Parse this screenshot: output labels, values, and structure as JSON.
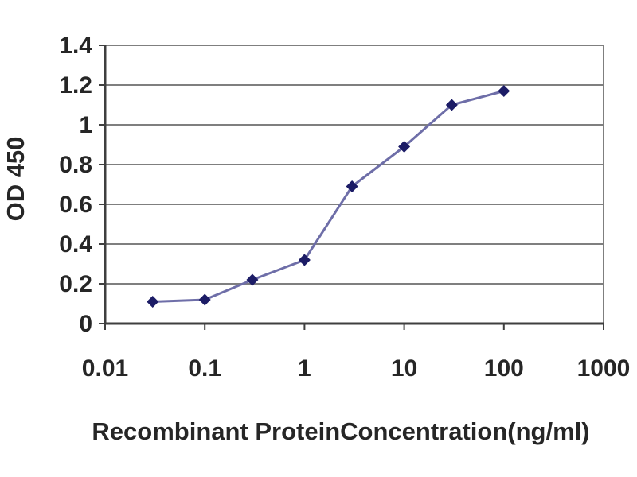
{
  "chart": {
    "ylabel": "OD 450",
    "xlabel": "Recombinant ProteinConcentration(ng/ml)"
  },
  "chart_data": {
    "type": "line",
    "title": "",
    "xlabel": "Recombinant ProteinConcentration(ng/ml)",
    "ylabel": "OD 450",
    "xscale": "log",
    "xlim": [
      0.01,
      1000
    ],
    "ylim": [
      0,
      1.4
    ],
    "x": [
      0.03,
      0.1,
      0.3,
      1,
      3,
      10,
      30,
      100
    ],
    "y": [
      0.11,
      0.12,
      0.22,
      0.32,
      0.69,
      0.89,
      1.1,
      1.17
    ],
    "xtick_values": [
      0.01,
      0.1,
      1,
      10,
      100,
      1000
    ],
    "xtick_labels": [
      "0.01",
      "0.1",
      "1",
      "10",
      "100",
      "1000"
    ],
    "ytick_values": [
      0,
      0.2,
      0.4,
      0.6,
      0.8,
      1,
      1.2,
      1.4
    ],
    "ytick_labels": [
      "0",
      "0.2",
      "0.4",
      "0.6",
      "0.8",
      "1",
      "1.2",
      "1.4"
    ],
    "grid": "horizontal",
    "legend": "none",
    "marker": "diamond",
    "colors": {
      "line": "#6E6EA8",
      "marker": "#1C1C66",
      "grid": "#7F7F7F",
      "axis": "#3F3F3F",
      "text": "#262626",
      "background": "#FFFFFF"
    }
  }
}
